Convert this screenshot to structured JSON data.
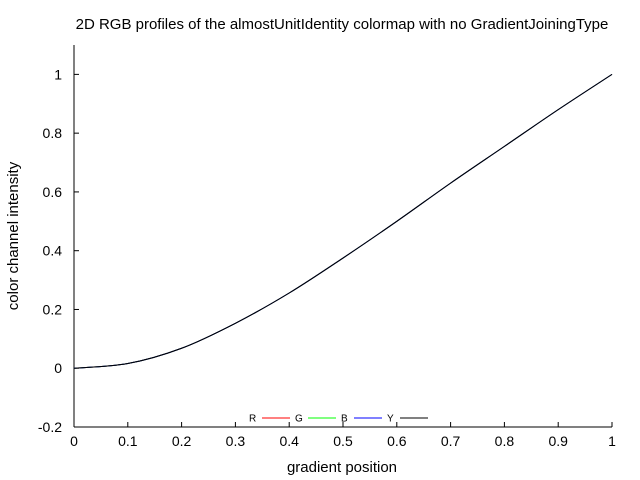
{
  "chart_data": {
    "type": "line",
    "title": "2D RGB profiles of the almostUnitIdentity colormap with no GradientJoiningType",
    "xlabel": "gradient position",
    "ylabel": "color channel intensity",
    "xlim": [
      0,
      1
    ],
    "ylim": [
      -0.2,
      1.1
    ],
    "x_ticks": [
      "0",
      "0.1",
      "0.2",
      "0.3",
      "0.4",
      "0.5",
      "0.6",
      "0.7",
      "0.8",
      "0.9",
      "1"
    ],
    "y_ticks": [
      "-0.2",
      "0",
      "0.2",
      "0.4",
      "0.6",
      "0.8",
      "1"
    ],
    "grid": false,
    "legend_position": "bottom-center",
    "series": [
      {
        "name": "R",
        "color": "#ff0000",
        "x": [
          0,
          0.1,
          0.2,
          0.3,
          0.4,
          0.5,
          0.6,
          0.7,
          0.8,
          0.9,
          1
        ],
        "y": [
          0,
          0.016,
          0.068,
          0.153,
          0.256,
          0.375,
          0.5,
          0.63,
          0.755,
          0.88,
          1
        ]
      },
      {
        "name": "G",
        "color": "#00ff00",
        "x": [
          0,
          0.1,
          0.2,
          0.3,
          0.4,
          0.5,
          0.6,
          0.7,
          0.8,
          0.9,
          1
        ],
        "y": [
          0,
          0.016,
          0.068,
          0.153,
          0.256,
          0.375,
          0.5,
          0.63,
          0.755,
          0.88,
          1
        ]
      },
      {
        "name": "B",
        "color": "#0000ff",
        "x": [
          0,
          0.1,
          0.2,
          0.3,
          0.4,
          0.5,
          0.6,
          0.7,
          0.8,
          0.9,
          1
        ],
        "y": [
          0,
          0.016,
          0.068,
          0.153,
          0.256,
          0.375,
          0.5,
          0.63,
          0.755,
          0.88,
          1
        ]
      },
      {
        "name": "Y",
        "color": "#000000",
        "x": [
          0,
          0.1,
          0.2,
          0.3,
          0.4,
          0.5,
          0.6,
          0.7,
          0.8,
          0.9,
          1
        ],
        "y": [
          0,
          0.016,
          0.068,
          0.153,
          0.256,
          0.375,
          0.5,
          0.63,
          0.755,
          0.88,
          1
        ]
      }
    ]
  }
}
